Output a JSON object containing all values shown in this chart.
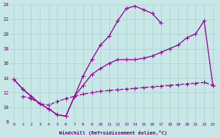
{
  "xlabel": "Windchill (Refroidissement éolien,°C)",
  "bg_color": "#c8e8e8",
  "grid_color": "#aacccc",
  "line_color": "#990099",
  "xlim": [
    -0.5,
    23.5
  ],
  "ylim": [
    8,
    24
  ],
  "xticks": [
    0,
    1,
    2,
    3,
    4,
    5,
    6,
    7,
    8,
    9,
    10,
    11,
    12,
    13,
    14,
    15,
    16,
    17,
    18,
    19,
    20,
    21,
    22,
    23
  ],
  "yticks": [
    8,
    10,
    12,
    14,
    16,
    18,
    20,
    22,
    24
  ],
  "line1_x": [
    0,
    1,
    2,
    3,
    4,
    5,
    6,
    7,
    8,
    9,
    10,
    11,
    12,
    13,
    14,
    15,
    16,
    17,
    18,
    19,
    20,
    21,
    22
  ],
  "line1_y": [
    13.8,
    12.5,
    11.5,
    10.5,
    9.8,
    9.0,
    8.8,
    11.5,
    14.3,
    16.5,
    18.5,
    19.7,
    21.8,
    23.5,
    23.8,
    23.3,
    22.8,
    21.5,
    null,
    null,
    null,
    null,
    null
  ],
  "line2_x": [
    0,
    1,
    2,
    3,
    4,
    5,
    6,
    7,
    8,
    9,
    10,
    11,
    12,
    13,
    14,
    15,
    16,
    17,
    18,
    19,
    20,
    21,
    22,
    23
  ],
  "line2_y": [
    13.8,
    12.5,
    11.5,
    10.5,
    9.8,
    9.0,
    8.8,
    11.5,
    13.0,
    14.5,
    15.3,
    16.0,
    16.5,
    16.5,
    16.5,
    16.7,
    17.0,
    17.5,
    18.0,
    18.5,
    19.5,
    20.0,
    21.8,
    13.0
  ],
  "line3_x": [
    0,
    1,
    2,
    3,
    4,
    5,
    6,
    7,
    8,
    9,
    10,
    11,
    12,
    13,
    14,
    15,
    16,
    17,
    18,
    19,
    20,
    21,
    22,
    23
  ],
  "line3_y": [
    null,
    11.5,
    11.2,
    10.5,
    10.3,
    10.8,
    11.2,
    11.5,
    11.8,
    12.0,
    12.2,
    12.3,
    12.4,
    12.5,
    12.6,
    12.7,
    12.8,
    12.9,
    13.0,
    13.1,
    13.2,
    13.3,
    13.4,
    13.0
  ],
  "marker": "+",
  "markersize": 4,
  "linewidth": 1.0
}
